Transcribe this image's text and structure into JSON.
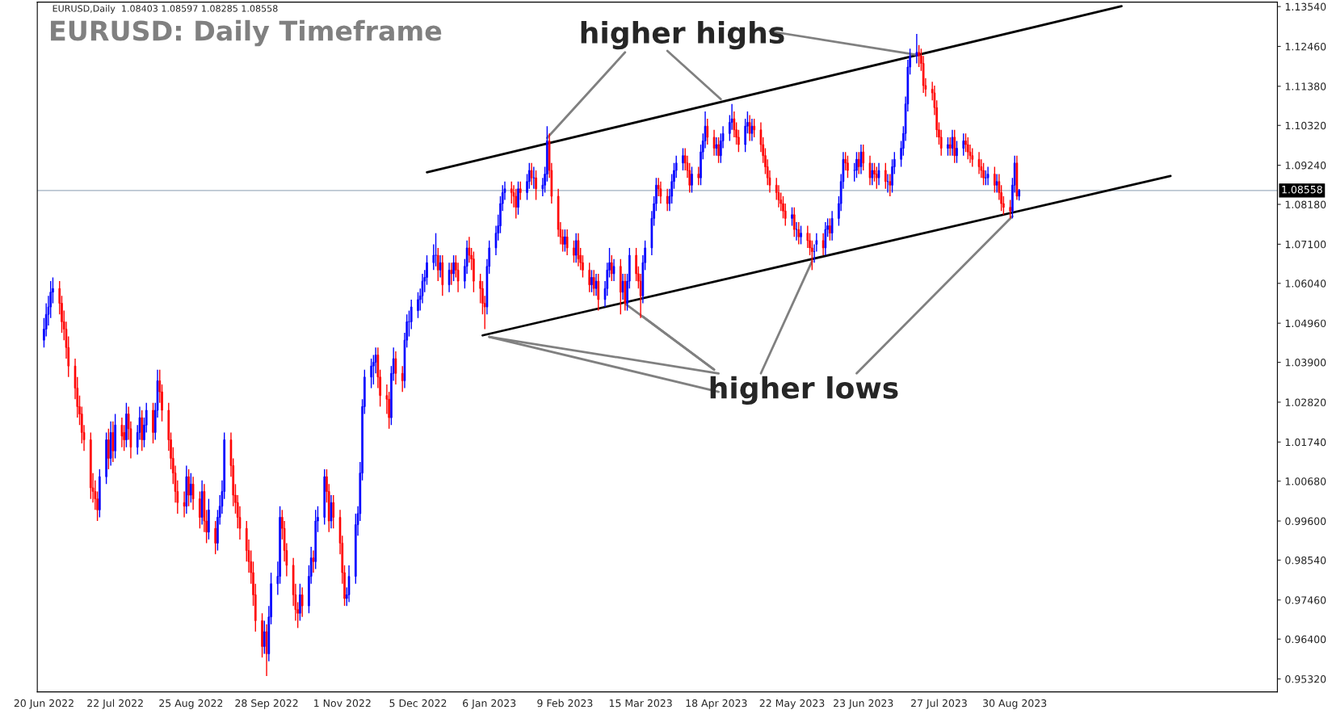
{
  "chart_data": {
    "type": "candlestick",
    "title": "EURUSD: Daily Timeframe",
    "subtitle": "EURUSD,Daily  1.08403 1.08597 1.08285 1.08558",
    "x": [
      "2022-06-20",
      "2022-06-21",
      "2022-06-22",
      "2022-06-23",
      "2022-06-24",
      "2022-06-27",
      "2022-06-28",
      "2022-06-29",
      "2022-06-30",
      "2022-07-01",
      "2022-07-04",
      "2022-07-05",
      "2022-07-06",
      "2022-07-07",
      "2022-07-08",
      "2022-07-11",
      "2022-07-12",
      "2022-07-13",
      "2022-07-14",
      "2022-07-15",
      "2022-07-18",
      "2022-07-19",
      "2022-07-20",
      "2022-07-21",
      "2022-07-22",
      "2022-07-25",
      "2022-07-26",
      "2022-07-27",
      "2022-07-28",
      "2022-07-29",
      "2022-08-01",
      "2022-08-02",
      "2022-08-03",
      "2022-08-04",
      "2022-08-05",
      "2022-08-08",
      "2022-08-09",
      "2022-08-10",
      "2022-08-11",
      "2022-08-12",
      "2022-08-15",
      "2022-08-16",
      "2022-08-17",
      "2022-08-18",
      "2022-08-19",
      "2022-08-22",
      "2022-08-23",
      "2022-08-24",
      "2022-08-25",
      "2022-08-26",
      "2022-08-29",
      "2022-08-30",
      "2022-08-31",
      "2022-09-01",
      "2022-09-02",
      "2022-09-05",
      "2022-09-06",
      "2022-09-07",
      "2022-09-08",
      "2022-09-09",
      "2022-09-12",
      "2022-09-13",
      "2022-09-14",
      "2022-09-15",
      "2022-09-16",
      "2022-09-19",
      "2022-09-20",
      "2022-09-21",
      "2022-09-22",
      "2022-09-23",
      "2022-09-26",
      "2022-09-27",
      "2022-09-28",
      "2022-09-29",
      "2022-09-30",
      "2022-10-03",
      "2022-10-04",
      "2022-10-05",
      "2022-10-06",
      "2022-10-07",
      "2022-10-10",
      "2022-10-11",
      "2022-10-12",
      "2022-10-13",
      "2022-10-14",
      "2022-10-17",
      "2022-10-18",
      "2022-10-19",
      "2022-10-20",
      "2022-10-21",
      "2022-10-24",
      "2022-10-25",
      "2022-10-26",
      "2022-10-27",
      "2022-10-28",
      "2022-10-31",
      "2022-11-01",
      "2022-11-02",
      "2022-11-03",
      "2022-11-04",
      "2022-11-07",
      "2022-11-08",
      "2022-11-09",
      "2022-11-10",
      "2022-11-11",
      "2022-11-14",
      "2022-11-15",
      "2022-11-16",
      "2022-11-17",
      "2022-11-18",
      "2022-11-21",
      "2022-11-22",
      "2022-11-23",
      "2022-11-24",
      "2022-11-25",
      "2022-11-28",
      "2022-11-29",
      "2022-11-30",
      "2022-12-01",
      "2022-12-02",
      "2022-12-05",
      "2022-12-06",
      "2022-12-07",
      "2022-12-08",
      "2022-12-09",
      "2022-12-12",
      "2022-12-13",
      "2022-12-14",
      "2022-12-15",
      "2022-12-16",
      "2022-12-19",
      "2022-12-20",
      "2022-12-21",
      "2022-12-22",
      "2022-12-23",
      "2022-12-26",
      "2022-12-27",
      "2022-12-28",
      "2022-12-29",
      "2022-12-30",
      "2023-01-02",
      "2023-01-03",
      "2023-01-04",
      "2023-01-05",
      "2023-01-06",
      "2023-01-09",
      "2023-01-10",
      "2023-01-11",
      "2023-01-12",
      "2023-01-13",
      "2023-01-16",
      "2023-01-17",
      "2023-01-18",
      "2023-01-19",
      "2023-01-20",
      "2023-01-23",
      "2023-01-24",
      "2023-01-25",
      "2023-01-26",
      "2023-01-27",
      "2023-01-30",
      "2023-01-31",
      "2023-02-01",
      "2023-02-02",
      "2023-02-03",
      "2023-02-06",
      "2023-02-07",
      "2023-02-08",
      "2023-02-09",
      "2023-02-10",
      "2023-02-13",
      "2023-02-14",
      "2023-02-15",
      "2023-02-16",
      "2023-02-17",
      "2023-02-20",
      "2023-02-21",
      "2023-02-22",
      "2023-02-23",
      "2023-02-24",
      "2023-02-27",
      "2023-02-28",
      "2023-03-01",
      "2023-03-02",
      "2023-03-03",
      "2023-03-06",
      "2023-03-07",
      "2023-03-08",
      "2023-03-09",
      "2023-03-10",
      "2023-03-13",
      "2023-03-14",
      "2023-03-15",
      "2023-03-16",
      "2023-03-17",
      "2023-03-20",
      "2023-03-21",
      "2023-03-22",
      "2023-03-23",
      "2023-03-24",
      "2023-03-27",
      "2023-03-28",
      "2023-03-29",
      "2023-03-30",
      "2023-03-31",
      "2023-04-03",
      "2023-04-04",
      "2023-04-05",
      "2023-04-06",
      "2023-04-07",
      "2023-04-10",
      "2023-04-11",
      "2023-04-12",
      "2023-04-13",
      "2023-04-14",
      "2023-04-17",
      "2023-04-18",
      "2023-04-19",
      "2023-04-20",
      "2023-04-21",
      "2023-04-24",
      "2023-04-25",
      "2023-04-26",
      "2023-04-27",
      "2023-04-28",
      "2023-05-01",
      "2023-05-02",
      "2023-05-03",
      "2023-05-04",
      "2023-05-05",
      "2023-05-08",
      "2023-05-09",
      "2023-05-10",
      "2023-05-11",
      "2023-05-12",
      "2023-05-15",
      "2023-05-16",
      "2023-05-17",
      "2023-05-18",
      "2023-05-19",
      "2023-05-22",
      "2023-05-23",
      "2023-05-24",
      "2023-05-25",
      "2023-05-26",
      "2023-05-29",
      "2023-05-30",
      "2023-05-31",
      "2023-06-01",
      "2023-06-02",
      "2023-06-05",
      "2023-06-06",
      "2023-06-07",
      "2023-06-08",
      "2023-06-09",
      "2023-06-12",
      "2023-06-13",
      "2023-06-14",
      "2023-06-15",
      "2023-06-16",
      "2023-06-19",
      "2023-06-20",
      "2023-06-21",
      "2023-06-22",
      "2023-06-23",
      "2023-06-26",
      "2023-06-27",
      "2023-06-28",
      "2023-06-29",
      "2023-06-30",
      "2023-07-03",
      "2023-07-04",
      "2023-07-05",
      "2023-07-06",
      "2023-07-07",
      "2023-07-10",
      "2023-07-11",
      "2023-07-12",
      "2023-07-13",
      "2023-07-14",
      "2023-07-17",
      "2023-07-18",
      "2023-07-19",
      "2023-07-20",
      "2023-07-21",
      "2023-07-24",
      "2023-07-25",
      "2023-07-26",
      "2023-07-27",
      "2023-07-28",
      "2023-07-31",
      "2023-08-01",
      "2023-08-02",
      "2023-08-03",
      "2023-08-04",
      "2023-08-07",
      "2023-08-08",
      "2023-08-09",
      "2023-08-10",
      "2023-08-11",
      "2023-08-14",
      "2023-08-15",
      "2023-08-16",
      "2023-08-17",
      "2023-08-18",
      "2023-08-21",
      "2023-08-22",
      "2023-08-23",
      "2023-08-24",
      "2023-08-25",
      "2023-08-28",
      "2023-08-29",
      "2023-08-30",
      "2023-08-31",
      "2023-09-01"
    ],
    "ohlc": [
      [
        1.045,
        1.051,
        1.043,
        1.048
      ],
      [
        1.048,
        1.055,
        1.046,
        1.052
      ],
      [
        1.052,
        1.057,
        1.049,
        1.054
      ],
      [
        1.054,
        1.061,
        1.051,
        1.058
      ],
      [
        1.058,
        1.062,
        1.055,
        1.059
      ],
      [
        1.059,
        1.061,
        1.052,
        1.055
      ],
      [
        1.055,
        1.057,
        1.047,
        1.05
      ],
      [
        1.05,
        1.053,
        1.045,
        1.048
      ],
      [
        1.048,
        1.05,
        1.04,
        1.043
      ],
      [
        1.043,
        1.046,
        1.035,
        1.038
      ],
      [
        1.038,
        1.04,
        1.029,
        1.032
      ],
      [
        1.032,
        1.035,
        1.024,
        1.027
      ],
      [
        1.027,
        1.03,
        1.022,
        1.025
      ],
      [
        1.025,
        1.027,
        1.017,
        1.02
      ],
      [
        1.02,
        1.022,
        1.015,
        1.018
      ],
      [
        1.018,
        1.02,
        1.002,
        1.005
      ],
      [
        1.005,
        1.009,
        1.001,
        1.004
      ],
      [
        1.004,
        1.007,
        0.999,
        1.002
      ],
      [
        1.002,
        1.004,
        0.996,
        0.999
      ],
      [
        0.999,
        1.01,
        0.997,
        1.008
      ],
      [
        1.008,
        1.02,
        1.006,
        1.018
      ],
      [
        1.018,
        1.021,
        1.01,
        1.013
      ],
      [
        1.013,
        1.023,
        1.011,
        1.02
      ],
      [
        1.02,
        1.023,
        1.012,
        1.015
      ],
      [
        1.015,
        1.025,
        1.013,
        1.022
      ],
      [
        1.022,
        1.024,
        1.016,
        1.019
      ],
      [
        1.02,
        1.022,
        1.015,
        1.018
      ],
      [
        1.018,
        1.028,
        1.016,
        1.025
      ],
      [
        1.025,
        1.027,
        1.018,
        1.021
      ],
      [
        1.021,
        1.023,
        1.013,
        1.016
      ],
      [
        1.016,
        1.022,
        1.014,
        1.02
      ],
      [
        1.02,
        1.027,
        1.018,
        1.024
      ],
      [
        1.024,
        1.026,
        1.015,
        1.018
      ],
      [
        1.018,
        1.024,
        1.016,
        1.022
      ],
      [
        1.022,
        1.028,
        1.02,
        1.026
      ],
      [
        1.026,
        1.028,
        1.017,
        1.02
      ],
      [
        1.02,
        1.028,
        1.018,
        1.026
      ],
      [
        1.026,
        1.037,
        1.024,
        1.034
      ],
      [
        1.034,
        1.037,
        1.028,
        1.031
      ],
      [
        1.031,
        1.033,
        1.023,
        1.026
      ],
      [
        1.026,
        1.028,
        1.015,
        1.018
      ],
      [
        1.018,
        1.02,
        1.01,
        1.013
      ],
      [
        1.013,
        1.016,
        1.006,
        1.009
      ],
      [
        1.009,
        1.011,
        1.001,
        1.004
      ],
      [
        1.004,
        1.007,
        0.998,
        1.001
      ],
      [
        1.001,
        1.004,
        0.997,
        1.0
      ],
      [
        1.0,
        1.011,
        0.998,
        1.008
      ],
      [
        1.008,
        1.01,
        1.0,
        1.003
      ],
      [
        1.003,
        1.009,
        1.001,
        1.006
      ],
      [
        1.006,
        1.008,
        0.999,
        1.002
      ],
      [
        1.002,
        1.004,
        0.994,
        0.997
      ],
      [
        0.997,
        1.007,
        0.995,
        1.004
      ],
      [
        1.004,
        1.006,
        0.993,
        0.996
      ],
      [
        0.996,
        0.999,
        0.99,
        0.993
      ],
      [
        0.993,
        1.002,
        0.991,
        0.999
      ],
      [
        0.994,
        0.996,
        0.987,
        0.99
      ],
      [
        0.99,
        0.999,
        0.988,
        0.997
      ],
      [
        0.997,
        1.003,
        0.995,
        1.0
      ],
      [
        1.0,
        1.007,
        0.998,
        1.004
      ],
      [
        1.004,
        1.02,
        1.002,
        1.018
      ],
      [
        1.018,
        1.02,
        1.008,
        1.011
      ],
      [
        1.011,
        1.013,
        1.0,
        1.003
      ],
      [
        1.003,
        1.006,
        0.998,
        1.001
      ],
      [
        1.001,
        1.003,
        0.994,
        0.997
      ],
      [
        0.997,
        1.0,
        0.991,
        0.994
      ],
      [
        0.994,
        0.996,
        0.985,
        0.988
      ],
      [
        0.988,
        0.991,
        0.982,
        0.985
      ],
      [
        0.985,
        0.988,
        0.979,
        0.982
      ],
      [
        0.982,
        0.985,
        0.973,
        0.976
      ],
      [
        0.976,
        0.979,
        0.966,
        0.969
      ],
      [
        0.969,
        0.971,
        0.959,
        0.962
      ],
      [
        0.962,
        0.969,
        0.96,
        0.966
      ],
      [
        0.966,
        0.968,
        0.954,
        0.96
      ],
      [
        0.96,
        0.973,
        0.958,
        0.97
      ],
      [
        0.97,
        0.982,
        0.968,
        0.979
      ],
      [
        0.979,
        0.985,
        0.976,
        0.981
      ],
      [
        0.981,
        1.0,
        0.979,
        0.997
      ],
      [
        0.997,
        0.999,
        0.991,
        0.994
      ],
      [
        0.994,
        0.996,
        0.985,
        0.988
      ],
      [
        0.988,
        0.99,
        0.981,
        0.984
      ],
      [
        0.984,
        0.986,
        0.973,
        0.976
      ],
      [
        0.976,
        0.979,
        0.969,
        0.972
      ],
      [
        0.972,
        0.974,
        0.967,
        0.971
      ],
      [
        0.971,
        0.979,
        0.969,
        0.976
      ],
      [
        0.976,
        0.978,
        0.97,
        0.973
      ],
      [
        0.973,
        0.984,
        0.971,
        0.981
      ],
      [
        0.981,
        0.989,
        0.979,
        0.986
      ],
      [
        0.986,
        0.988,
        0.982,
        0.985
      ],
      [
        0.985,
        0.999,
        0.983,
        0.996
      ],
      [
        0.996,
        1.0,
        0.993,
        0.997
      ],
      [
        0.997,
        1.01,
        0.995,
        1.008
      ],
      [
        1.008,
        1.01,
        1.001,
        1.004
      ],
      [
        1.004,
        1.006,
        0.993,
        0.996
      ],
      [
        0.996,
        1.003,
        0.994,
        1.001
      ],
      [
        1.001,
        1.003,
        0.994,
        0.997
      ],
      [
        0.997,
        0.999,
        0.987,
        0.99
      ],
      [
        0.99,
        0.992,
        0.979,
        0.982
      ],
      [
        0.982,
        0.984,
        0.973,
        0.975
      ],
      [
        0.975,
        0.978,
        0.973,
        0.976
      ],
      [
        0.976,
        0.984,
        0.974,
        0.981
      ],
      [
        0.981,
        0.998,
        0.979,
        0.995
      ],
      [
        0.995,
        1.0,
        0.992,
        0.998
      ],
      [
        0.998,
        1.012,
        0.996,
        1.009
      ],
      [
        1.009,
        1.029,
        1.007,
        1.027
      ],
      [
        1.027,
        1.037,
        1.025,
        1.035
      ],
      [
        1.035,
        1.04,
        1.032,
        1.038
      ],
      [
        1.038,
        1.041,
        1.033,
        1.039
      ],
      [
        1.039,
        1.043,
        1.036,
        1.041
      ],
      [
        1.041,
        1.043,
        1.032,
        1.035
      ],
      [
        1.035,
        1.037,
        1.027,
        1.03
      ],
      [
        1.03,
        1.033,
        1.025,
        1.029
      ],
      [
        1.029,
        1.031,
        1.021,
        1.024
      ],
      [
        1.024,
        1.038,
        1.022,
        1.036
      ],
      [
        1.036,
        1.043,
        1.034,
        1.04
      ],
      [
        1.04,
        1.042,
        1.033,
        1.036
      ],
      [
        1.036,
        1.038,
        1.031,
        1.034
      ],
      [
        1.034,
        1.047,
        1.032,
        1.045
      ],
      [
        1.045,
        1.052,
        1.043,
        1.05
      ],
      [
        1.05,
        1.053,
        1.046,
        1.05
      ],
      [
        1.05,
        1.056,
        1.048,
        1.054
      ],
      [
        1.053,
        1.058,
        1.051,
        1.056
      ],
      [
        1.056,
        1.059,
        1.053,
        1.057
      ],
      [
        1.057,
        1.063,
        1.055,
        1.061
      ],
      [
        1.061,
        1.064,
        1.058,
        1.062
      ],
      [
        1.062,
        1.068,
        1.06,
        1.066
      ],
      [
        1.066,
        1.071,
        1.064,
        1.068
      ],
      [
        1.068,
        1.074,
        1.065,
        1.068
      ],
      [
        1.068,
        1.07,
        1.061,
        1.064
      ],
      [
        1.064,
        1.068,
        1.062,
        1.066
      ],
      [
        1.066,
        1.068,
        1.057,
        1.06
      ],
      [
        1.06,
        1.066,
        1.058,
        1.064
      ],
      [
        1.064,
        1.066,
        1.06,
        1.063
      ],
      [
        1.063,
        1.068,
        1.061,
        1.066
      ],
      [
        1.066,
        1.068,
        1.062,
        1.064
      ],
      [
        1.064,
        1.066,
        1.058,
        1.061
      ],
      [
        1.061,
        1.067,
        1.059,
        1.065
      ],
      [
        1.065,
        1.072,
        1.063,
        1.07
      ],
      [
        1.07,
        1.073,
        1.066,
        1.068
      ],
      [
        1.068,
        1.07,
        1.064,
        1.067
      ],
      [
        1.067,
        1.069,
        1.058,
        1.061
      ],
      [
        1.061,
        1.063,
        1.055,
        1.059
      ],
      [
        1.059,
        1.061,
        1.052,
        1.055
      ],
      [
        1.055,
        1.057,
        1.048,
        1.054
      ],
      [
        1.054,
        1.067,
        1.052,
        1.065
      ],
      [
        1.065,
        1.072,
        1.063,
        1.07
      ],
      [
        1.07,
        1.076,
        1.068,
        1.074
      ],
      [
        1.074,
        1.079,
        1.072,
        1.076
      ],
      [
        1.076,
        1.084,
        1.074,
        1.082
      ],
      [
        1.082,
        1.087,
        1.08,
        1.085
      ],
      [
        1.085,
        1.088,
        1.083,
        1.086
      ],
      [
        1.086,
        1.088,
        1.082,
        1.085
      ],
      [
        1.085,
        1.087,
        1.081,
        1.084
      ],
      [
        1.084,
        1.086,
        1.078,
        1.081
      ],
      [
        1.081,
        1.088,
        1.079,
        1.086
      ],
      [
        1.086,
        1.088,
        1.083,
        1.085
      ],
      [
        1.085,
        1.09,
        1.083,
        1.088
      ],
      [
        1.088,
        1.093,
        1.086,
        1.091
      ],
      [
        1.091,
        1.093,
        1.087,
        1.089
      ],
      [
        1.089,
        1.092,
        1.086,
        1.089
      ],
      [
        1.089,
        1.091,
        1.083,
        1.086
      ],
      [
        1.086,
        1.089,
        1.084,
        1.087
      ],
      [
        1.087,
        1.092,
        1.085,
        1.09
      ],
      [
        1.09,
        1.103,
        1.088,
        1.099
      ],
      [
        1.099,
        1.101,
        1.089,
        1.091
      ],
      [
        1.091,
        1.093,
        1.082,
        1.084
      ],
      [
        1.084,
        1.086,
        1.073,
        1.075
      ],
      [
        1.075,
        1.077,
        1.071,
        1.073
      ],
      [
        1.073,
        1.075,
        1.069,
        1.071
      ],
      [
        1.071,
        1.075,
        1.069,
        1.073
      ],
      [
        1.073,
        1.075,
        1.068,
        1.07
      ],
      [
        1.07,
        1.072,
        1.066,
        1.068
      ],
      [
        1.068,
        1.074,
        1.066,
        1.072
      ],
      [
        1.072,
        1.074,
        1.065,
        1.067
      ],
      [
        1.068,
        1.07,
        1.064,
        1.066
      ],
      [
        1.066,
        1.068,
        1.062,
        1.064
      ],
      [
        1.064,
        1.066,
        1.058,
        1.06
      ],
      [
        1.06,
        1.064,
        1.058,
        1.062
      ],
      [
        1.062,
        1.064,
        1.057,
        1.059
      ],
      [
        1.059,
        1.063,
        1.057,
        1.061
      ],
      [
        1.061,
        1.063,
        1.053,
        1.056
      ],
      [
        1.056,
        1.061,
        1.054,
        1.059
      ],
      [
        1.059,
        1.066,
        1.057,
        1.064
      ],
      [
        1.064,
        1.07,
        1.062,
        1.066
      ],
      [
        1.066,
        1.068,
        1.061,
        1.063
      ],
      [
        1.063,
        1.067,
        1.061,
        1.065
      ],
      [
        1.065,
        1.067,
        1.052,
        1.058
      ],
      [
        1.058,
        1.063,
        1.056,
        1.061
      ],
      [
        1.061,
        1.063,
        1.053,
        1.055
      ],
      [
        1.055,
        1.063,
        1.053,
        1.061
      ],
      [
        1.061,
        1.07,
        1.059,
        1.068
      ],
      [
        1.068,
        1.07,
        1.061,
        1.063
      ],
      [
        1.063,
        1.065,
        1.059,
        1.061
      ],
      [
        1.061,
        1.063,
        1.051,
        1.057
      ],
      [
        1.057,
        1.068,
        1.055,
        1.066
      ],
      [
        1.066,
        1.072,
        1.064,
        1.07
      ],
      [
        1.07,
        1.08,
        1.068,
        1.078
      ],
      [
        1.078,
        1.084,
        1.076,
        1.082
      ],
      [
        1.082,
        1.089,
        1.08,
        1.087
      ],
      [
        1.087,
        1.089,
        1.084,
        1.086
      ],
      [
        1.086,
        1.088,
        1.082,
        1.084
      ],
      [
        1.084,
        1.086,
        1.08,
        1.082
      ],
      [
        1.082,
        1.086,
        1.08,
        1.084
      ],
      [
        1.084,
        1.09,
        1.082,
        1.088
      ],
      [
        1.088,
        1.093,
        1.086,
        1.091
      ],
      [
        1.091,
        1.095,
        1.089,
        1.093
      ],
      [
        1.093,
        1.097,
        1.091,
        1.095
      ],
      [
        1.095,
        1.097,
        1.091,
        1.093
      ],
      [
        1.093,
        1.095,
        1.089,
        1.091
      ],
      [
        1.091,
        1.093,
        1.085,
        1.087
      ],
      [
        1.087,
        1.092,
        1.085,
        1.09
      ],
      [
        1.09,
        1.092,
        1.087,
        1.089
      ],
      [
        1.089,
        1.098,
        1.087,
        1.096
      ],
      [
        1.096,
        1.101,
        1.094,
        1.099
      ],
      [
        1.099,
        1.107,
        1.097,
        1.103
      ],
      [
        1.103,
        1.105,
        1.098,
        1.1
      ],
      [
        1.1,
        1.102,
        1.095,
        1.097
      ],
      [
        1.097,
        1.1,
        1.095,
        1.098
      ],
      [
        1.098,
        1.1,
        1.093,
        1.095
      ],
      [
        1.095,
        1.101,
        1.093,
        1.099
      ],
      [
        1.099,
        1.103,
        1.097,
        1.101
      ],
      [
        1.101,
        1.106,
        1.099,
        1.104
      ],
      [
        1.104,
        1.109,
        1.102,
        1.105
      ],
      [
        1.105,
        1.107,
        1.1,
        1.102
      ],
      [
        1.102,
        1.104,
        1.098,
        1.1
      ],
      [
        1.1,
        1.102,
        1.096,
        1.098
      ],
      [
        1.098,
        1.105,
        1.096,
        1.103
      ],
      [
        1.103,
        1.107,
        1.101,
        1.104
      ],
      [
        1.104,
        1.106,
        1.099,
        1.101
      ],
      [
        1.101,
        1.105,
        1.099,
        1.103
      ],
      [
        1.103,
        1.105,
        1.1,
        1.102
      ],
      [
        1.102,
        1.104,
        1.096,
        1.098
      ],
      [
        1.098,
        1.1,
        1.093,
        1.095
      ],
      [
        1.095,
        1.097,
        1.09,
        1.092
      ],
      [
        1.092,
        1.094,
        1.087,
        1.089
      ],
      [
        1.089,
        1.091,
        1.085,
        1.087
      ],
      [
        1.087,
        1.089,
        1.083,
        1.085
      ],
      [
        1.085,
        1.087,
        1.081,
        1.083
      ],
      [
        1.083,
        1.085,
        1.08,
        1.082
      ],
      [
        1.082,
        1.084,
        1.078,
        1.08
      ],
      [
        1.08,
        1.082,
        1.076,
        1.078
      ],
      [
        1.078,
        1.081,
        1.076,
        1.079
      ],
      [
        1.079,
        1.081,
        1.073,
        1.075
      ],
      [
        1.075,
        1.077,
        1.072,
        1.075
      ],
      [
        1.075,
        1.077,
        1.071,
        1.073
      ],
      [
        1.073,
        1.076,
        1.071,
        1.074
      ],
      [
        1.074,
        1.076,
        1.07,
        1.072
      ],
      [
        1.072,
        1.074,
        1.068,
        1.07
      ],
      [
        1.07,
        1.072,
        1.064,
        1.069
      ],
      [
        1.069,
        1.071,
        1.066,
        1.069
      ],
      [
        1.071,
        1.074,
        1.069,
        1.072
      ],
      [
        1.072,
        1.074,
        1.068,
        1.07
      ],
      [
        1.07,
        1.077,
        1.068,
        1.075
      ],
      [
        1.075,
        1.078,
        1.073,
        1.076
      ],
      [
        1.076,
        1.078,
        1.072,
        1.074
      ],
      [
        1.074,
        1.08,
        1.072,
        1.078
      ],
      [
        1.078,
        1.084,
        1.076,
        1.082
      ],
      [
        1.082,
        1.09,
        1.08,
        1.088
      ],
      [
        1.088,
        1.096,
        1.086,
        1.094
      ],
      [
        1.094,
        1.096,
        1.091,
        1.093
      ],
      [
        1.093,
        1.095,
        1.089,
        1.091
      ],
      [
        1.091,
        1.093,
        1.088,
        1.091
      ],
      [
        1.091,
        1.096,
        1.089,
        1.094
      ],
      [
        1.094,
        1.096,
        1.09,
        1.092
      ],
      [
        1.092,
        1.098,
        1.09,
        1.096
      ],
      [
        1.096,
        1.098,
        1.091,
        1.093
      ],
      [
        1.093,
        1.095,
        1.087,
        1.089
      ],
      [
        1.089,
        1.093,
        1.087,
        1.091
      ],
      [
        1.091,
        1.093,
        1.088,
        1.09
      ],
      [
        1.09,
        1.092,
        1.086,
        1.089
      ],
      [
        1.089,
        1.093,
        1.087,
        1.091
      ],
      [
        1.091,
        1.093,
        1.086,
        1.088
      ],
      [
        1.088,
        1.09,
        1.085,
        1.088
      ],
      [
        1.088,
        1.09,
        1.084,
        1.087
      ],
      [
        1.087,
        1.094,
        1.085,
        1.092
      ],
      [
        1.092,
        1.096,
        1.09,
        1.094
      ],
      [
        1.094,
        1.099,
        1.092,
        1.097
      ],
      [
        1.097,
        1.103,
        1.095,
        1.101
      ],
      [
        1.101,
        1.111,
        1.099,
        1.109
      ],
      [
        1.109,
        1.121,
        1.107,
        1.119
      ],
      [
        1.119,
        1.124,
        1.117,
        1.122
      ],
      [
        1.122,
        1.128,
        1.12,
        1.123
      ],
      [
        1.123,
        1.125,
        1.119,
        1.122
      ],
      [
        1.122,
        1.124,
        1.118,
        1.12
      ],
      [
        1.12,
        1.122,
        1.112,
        1.114
      ],
      [
        1.114,
        1.116,
        1.111,
        1.113
      ],
      [
        1.113,
        1.115,
        1.11,
        1.112
      ],
      [
        1.112,
        1.114,
        1.106,
        1.108
      ],
      [
        1.108,
        1.11,
        1.1,
        1.102
      ],
      [
        1.102,
        1.104,
        1.098,
        1.1
      ],
      [
        1.1,
        1.102,
        1.095,
        1.097
      ],
      [
        1.097,
        1.1,
        1.095,
        1.098
      ],
      [
        1.098,
        1.1,
        1.095,
        1.097
      ],
      [
        1.097,
        1.102,
        1.095,
        1.1
      ],
      [
        1.1,
        1.102,
        1.093,
        1.095
      ],
      [
        1.095,
        1.099,
        1.093,
        1.097
      ],
      [
        1.097,
        1.101,
        1.095,
        1.099
      ],
      [
        1.099,
        1.101,
        1.096,
        1.098
      ],
      [
        1.098,
        1.1,
        1.094,
        1.096
      ],
      [
        1.096,
        1.098,
        1.093,
        1.095
      ],
      [
        1.095,
        1.097,
        1.092,
        1.094
      ],
      [
        1.094,
        1.096,
        1.09,
        1.092
      ],
      [
        1.092,
        1.094,
        1.089,
        1.091
      ],
      [
        1.091,
        1.093,
        1.087,
        1.089
      ],
      [
        1.089,
        1.091,
        1.087,
        1.089
      ],
      [
        1.089,
        1.092,
        1.087,
        1.09
      ],
      [
        1.09,
        1.092,
        1.085,
        1.087
      ],
      [
        1.087,
        1.09,
        1.085,
        1.088
      ],
      [
        1.088,
        1.09,
        1.083,
        1.085
      ],
      [
        1.085,
        1.087,
        1.08,
        1.082
      ],
      [
        1.082,
        1.084,
        1.079,
        1.081
      ],
      [
        1.081,
        1.083,
        1.078,
        1.08
      ],
      [
        1.08,
        1.089,
        1.078,
        1.087
      ],
      [
        1.087,
        1.095,
        1.085,
        1.093
      ],
      [
        1.093,
        1.095,
        1.083,
        1.084
      ],
      [
        1.08403,
        1.08597,
        1.08285,
        1.08558
      ]
    ],
    "series": [
      {
        "type": "line",
        "color": "#000000",
        "x": [
          "2022-12-09",
          "2023-10-17"
        ],
        "values": [
          1.0905,
          1.1355
        ]
      },
      {
        "type": "line",
        "color": "#000000",
        "x": [
          "2023-01-03",
          "2023-11-08"
        ],
        "values": [
          1.0463,
          1.0895
        ]
      },
      {
        "type": "line",
        "color": "#808080",
        "x": [
          "2023-03-08",
          "2023-02-01"
        ],
        "values": [
          1.123,
          1.0998
        ]
      },
      {
        "type": "line",
        "color": "#808080",
        "x": [
          "2023-03-27",
          "2023-04-20"
        ],
        "values": [
          1.1234,
          1.1103
        ]
      },
      {
        "type": "line",
        "color": "#808080",
        "x": [
          "2023-05-12",
          "2023-07-17"
        ],
        "values": [
          1.1287,
          1.1223
        ]
      },
      {
        "type": "line",
        "color": "#808080",
        "x": [
          "2023-04-19",
          "2023-01-06"
        ],
        "values": [
          1.036,
          1.0459
        ]
      },
      {
        "type": "line",
        "color": "#808080",
        "x": [
          "2023-04-19",
          "2023-01-06"
        ],
        "values": [
          1.031,
          1.0459
        ]
      },
      {
        "type": "line",
        "color": "#808080",
        "x": [
          "2023-04-17",
          "2023-03-08"
        ],
        "values": [
          1.037,
          1.0549
        ]
      },
      {
        "type": "line",
        "color": "#808080",
        "x": [
          "2023-04-17",
          "2023-03-16"
        ],
        "values": [
          1.037,
          1.0514
        ]
      },
      {
        "type": "line",
        "color": "#808080",
        "x": [
          "2023-05-08",
          "2023-05-31"
        ],
        "values": [
          1.036,
          1.0664
        ]
      },
      {
        "type": "line",
        "color": "#808080",
        "x": [
          "2023-06-20",
          "2023-08-29"
        ],
        "values": [
          1.036,
          1.0786
        ]
      }
    ],
    "annotations": [
      "higher highs",
      "higher lows"
    ],
    "ref_lines": [
      {
        "axis": "y",
        "value": 1.08558,
        "label": "1.08558",
        "color": "#a0b0c0"
      }
    ],
    "xlim": [
      "2022-06-17",
      "2023-12-26"
    ],
    "xticks": [
      {
        "value": "2022-06-20",
        "label": "20 Jun 2022"
      },
      {
        "value": "2022-07-22",
        "label": "22 Jul 2022"
      },
      {
        "value": "2022-08-25",
        "label": "25 Aug 2022"
      },
      {
        "value": "2022-09-28",
        "label": "28 Sep 2022"
      },
      {
        "value": "2022-11-01",
        "label": "1 Nov 2022"
      },
      {
        "value": "2022-12-05",
        "label": "5 Dec 2022"
      },
      {
        "value": "2023-01-06",
        "label": "6 Jan 2023"
      },
      {
        "value": "2023-02-09",
        "label": "9 Feb 2023"
      },
      {
        "value": "2023-03-15",
        "label": "15 Mar 2023"
      },
      {
        "value": "2023-04-18",
        "label": "18 Apr 2023"
      },
      {
        "value": "2023-05-22",
        "label": "22 May 2023"
      },
      {
        "value": "2023-06-23",
        "label": "23 Jun 2023"
      },
      {
        "value": "2023-07-27",
        "label": "27 Jul 2023"
      },
      {
        "value": "2023-08-30",
        "label": "30 Aug 2023"
      }
    ],
    "ylim": [
      0.9497,
      1.1366
    ],
    "yticks": [
      {
        "value": 0.9532,
        "label": "0.95320"
      },
      {
        "value": 0.964,
        "label": "0.96400"
      },
      {
        "value": 0.9746,
        "label": "0.97460"
      },
      {
        "value": 0.9854,
        "label": "0.98540"
      },
      {
        "value": 0.996,
        "label": "0.99600"
      },
      {
        "value": 1.0068,
        "label": "1.00680"
      },
      {
        "value": 1.0174,
        "label": "1.01740"
      },
      {
        "value": 1.0282,
        "label": "1.02820"
      },
      {
        "value": 1.039,
        "label": "1.03900"
      },
      {
        "value": 1.0496,
        "label": "1.04960"
      },
      {
        "value": 1.0604,
        "label": "1.06040"
      },
      {
        "value": 1.071,
        "label": "1.07100"
      },
      {
        "value": 1.0818,
        "label": "1.08180"
      },
      {
        "value": 1.0924,
        "label": "1.09240"
      },
      {
        "value": 1.1032,
        "label": "1.10320"
      },
      {
        "value": 1.1138,
        "label": "1.11380"
      },
      {
        "value": 1.1246,
        "label": "1.12460"
      },
      {
        "value": 1.1354,
        "label": "1.13540"
      }
    ]
  }
}
